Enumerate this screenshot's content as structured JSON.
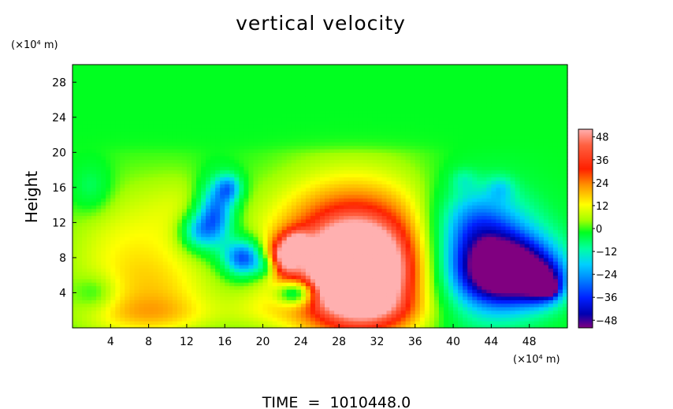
{
  "chart_data": {
    "type": "heatmap",
    "title": "vertical velocity",
    "ylabel": "Height",
    "xunit": "(×10⁴ m)",
    "yunit": "(×10⁴ m)",
    "footer": "TIME  =  1010448.0",
    "xlim": [
      0,
      52
    ],
    "ylim": [
      0,
      30
    ],
    "xticks": [
      "4",
      "8",
      "12",
      "16",
      "20",
      "24",
      "28",
      "32",
      "36",
      "40",
      "44",
      "48"
    ],
    "yticks": [
      "4",
      "8",
      "12",
      "16",
      "20",
      "24",
      "28"
    ],
    "colorbar": {
      "range": [
        -52,
        52
      ],
      "ticks": [
        "48",
        "36",
        "24",
        "12",
        "0",
        "−12",
        "−24",
        "−36",
        "−48"
      ]
    },
    "features": [
      {
        "type": "updraft core",
        "x": 30,
        "y": 5.5,
        "peak": 50
      },
      {
        "type": "updraft",
        "x": 22,
        "y": 8,
        "peak": 30
      },
      {
        "type": "downdraft core",
        "x": 46,
        "y": 6.5,
        "peak": -50
      },
      {
        "type": "downdraft",
        "x": 18,
        "y": 8,
        "peak": -38
      },
      {
        "type": "downdraft",
        "x": 15,
        "y": 13,
        "peak": -34
      },
      {
        "type": "downdraft",
        "x": 23.5,
        "y": 4,
        "peak": -30
      },
      {
        "type": "weak updraft",
        "x": 6,
        "y": 8,
        "peak": 14
      }
    ]
  }
}
